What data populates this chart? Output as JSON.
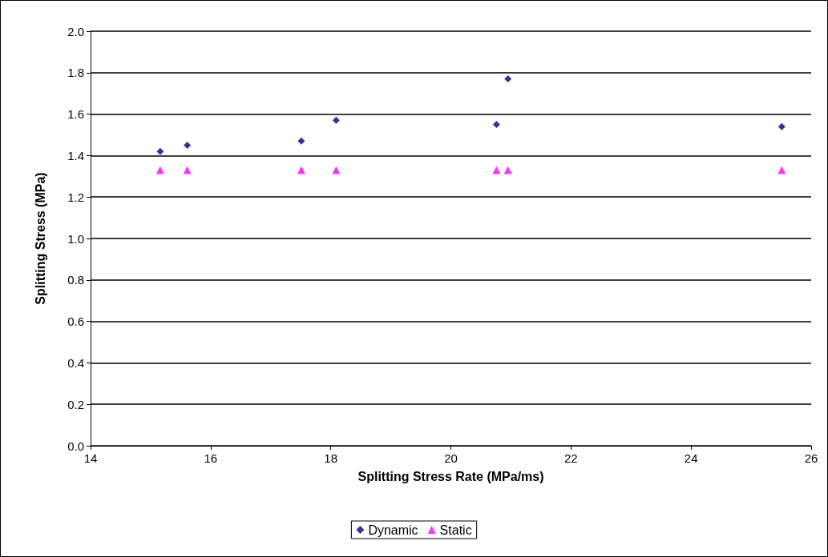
{
  "chart_data": {
    "type": "scatter",
    "xlabel": "Splitting Stress Rate (MPa/ms)",
    "ylabel": "Splitting Stress (MPa)",
    "xlim": [
      14,
      26
    ],
    "xticks": [
      14,
      16,
      18,
      20,
      22,
      24,
      26
    ],
    "ylim": [
      0,
      2
    ],
    "yticks": [
      {
        "value": 0,
        "label": "0.0"
      },
      0.2,
      0.4,
      0.6,
      0.8,
      {
        "value": 1,
        "label": "1.0"
      },
      1.2,
      1.4,
      1.6,
      1.8,
      {
        "value": 2,
        "label": "2.0"
      }
    ],
    "grid": "y",
    "legend": "bottom",
    "series": [
      {
        "name": "Dynamic",
        "color": "#000080",
        "marker": "diamond",
        "x": [
          15.16,
          15.61,
          17.51,
          18.09,
          20.76,
          20.95,
          25.51
        ],
        "values": [
          1.42,
          1.45,
          1.47,
          1.57,
          1.55,
          1.77,
          1.54
        ]
      },
      {
        "name": "Static",
        "color": "#ff00ff",
        "marker": "triangle",
        "x": [
          15.16,
          15.61,
          17.51,
          18.09,
          20.76,
          20.95,
          25.51
        ],
        "values": [
          1.33,
          1.33,
          1.33,
          1.33,
          1.33,
          1.33,
          1.33
        ]
      }
    ]
  }
}
